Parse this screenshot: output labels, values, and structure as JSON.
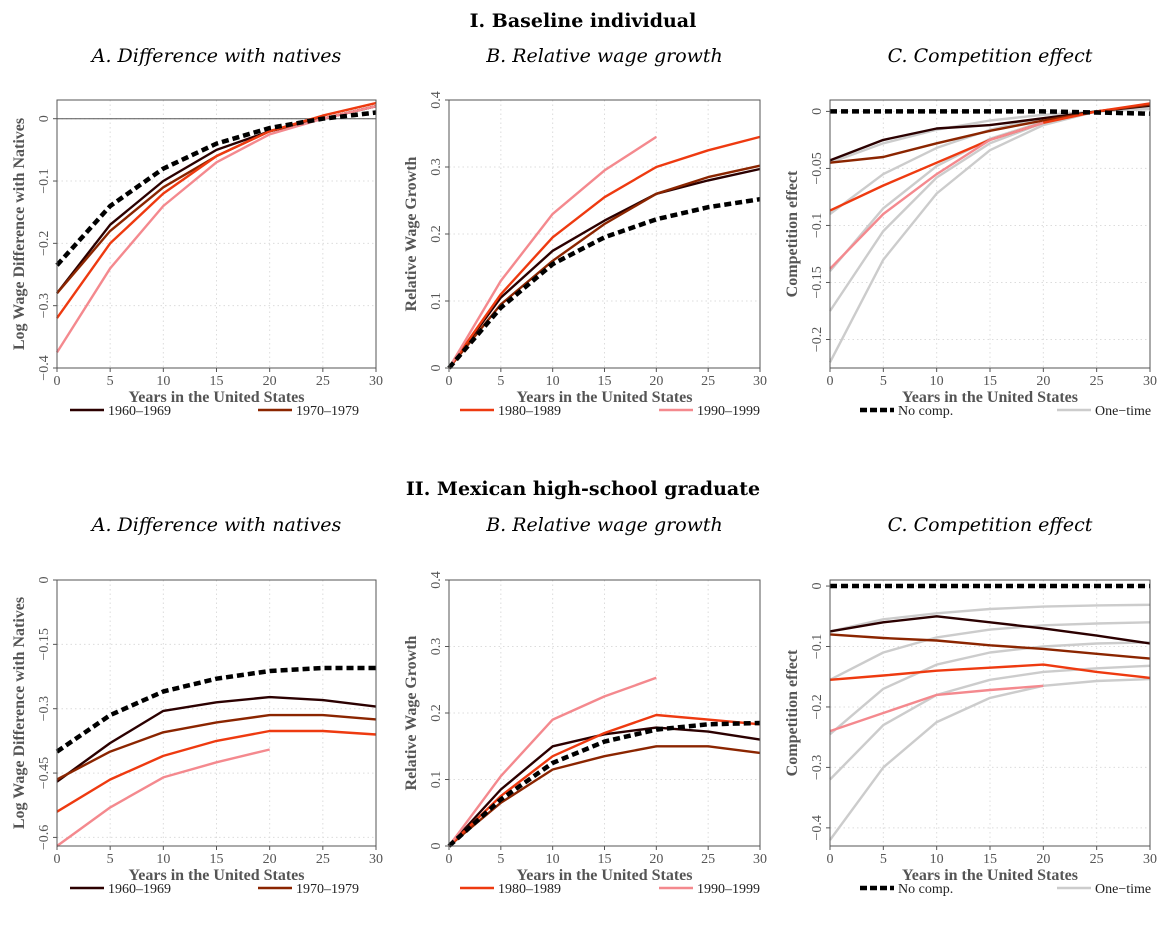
{
  "sections": [
    {
      "title": "I. Baseline individual",
      "panels": [
        {
          "title": "A. Difference with natives",
          "xlabel": "Years in the United States",
          "ylabel": "Log Wage Difference with Natives"
        },
        {
          "title": "B. Relative wage growth",
          "xlabel": "Years in the United States",
          "ylabel": "Relative Wage Growth"
        },
        {
          "title": "C. Competition effect",
          "xlabel": "Years in the United States",
          "ylabel": "Competition effect"
        }
      ],
      "legend": [
        "1960–1969",
        "1970–1979",
        "1980–1989",
        "1990–1999",
        "No comp.",
        "One−time"
      ]
    },
    {
      "title": "II. Mexican high-school graduate",
      "panels": [
        {
          "title": "A. Difference with natives",
          "xlabel": "Years in the United States",
          "ylabel": "Log Wage Difference with Natives"
        },
        {
          "title": "B. Relative wage growth",
          "xlabel": "Years in the United States",
          "ylabel": "Relative Wage Growth"
        },
        {
          "title": "C. Competition effect",
          "xlabel": "Years in the United States",
          "ylabel": "Competition effect"
        }
      ],
      "legend": [
        "1960–1969",
        "1970–1979",
        "1980–1989",
        "1990–1999",
        "No comp.",
        "One−time"
      ]
    }
  ],
  "colors": {
    "c1960": "#2b0000",
    "c1970": "#8b2500",
    "c1980": "#ee3a10",
    "c1990": "#f4898e",
    "nocomp": "#000000",
    "onetime": "#cccccc"
  },
  "chart_data": [
    {
      "type": "line",
      "xlim": [
        0,
        30
      ],
      "ylim": [
        -0.4,
        0.03
      ],
      "xticks": [
        0,
        5,
        10,
        15,
        20,
        25,
        30
      ],
      "yticks": [
        0,
        -0.1,
        -0.2,
        -0.3,
        -0.4
      ],
      "yticklabels": [
        "0",
        "−0.1",
        "−0.2",
        "−0.3",
        "−0.4"
      ],
      "zero_line": true,
      "series": [
        {
          "key": "c1960",
          "x": [
            0,
            5,
            10,
            15,
            20,
            25,
            30
          ],
          "y": [
            -0.28,
            -0.17,
            -0.1,
            -0.05,
            -0.02,
            0.0,
            0.02
          ]
        },
        {
          "key": "c1970",
          "x": [
            0,
            5,
            10,
            15,
            20,
            25,
            30
          ],
          "y": [
            -0.28,
            -0.18,
            -0.11,
            -0.06,
            -0.02,
            0.0,
            0.02
          ]
        },
        {
          "key": "c1980",
          "x": [
            0,
            5,
            10,
            15,
            20,
            25,
            30
          ],
          "y": [
            -0.32,
            -0.2,
            -0.12,
            -0.06,
            -0.02,
            0.005,
            0.025
          ]
        },
        {
          "key": "c1990",
          "x": [
            0,
            5,
            10,
            15,
            20,
            25,
            30
          ],
          "y": [
            -0.375,
            -0.24,
            -0.14,
            -0.07,
            -0.025,
            0.0,
            0.02
          ]
        },
        {
          "key": "nocomp",
          "x": [
            0,
            5,
            10,
            15,
            20,
            25,
            30
          ],
          "y": [
            -0.235,
            -0.14,
            -0.08,
            -0.04,
            -0.015,
            0.0,
            0.01
          ]
        }
      ]
    },
    {
      "type": "line",
      "xlim": [
        0,
        30
      ],
      "ylim": [
        0,
        0.4
      ],
      "xticks": [
        0,
        5,
        10,
        15,
        20,
        25,
        30
      ],
      "yticks": [
        0,
        0.1,
        0.2,
        0.3,
        0.4
      ],
      "yticklabels": [
        "0",
        "0.1",
        "0.2",
        "0.3",
        "0.4"
      ],
      "zero_line": false,
      "series": [
        {
          "key": "c1960",
          "x": [
            0,
            5,
            10,
            15,
            20,
            25,
            30
          ],
          "y": [
            0,
            0.105,
            0.175,
            0.22,
            0.26,
            0.28,
            0.297
          ]
        },
        {
          "key": "c1970",
          "x": [
            0,
            5,
            10,
            15,
            20,
            25,
            30
          ],
          "y": [
            0,
            0.095,
            0.16,
            0.215,
            0.26,
            0.285,
            0.302
          ]
        },
        {
          "key": "c1980",
          "x": [
            0,
            5,
            10,
            15,
            20,
            25,
            30
          ],
          "y": [
            0,
            0.11,
            0.195,
            0.255,
            0.3,
            0.325,
            0.345
          ]
        },
        {
          "key": "c1990",
          "x": [
            0,
            5,
            10,
            15,
            20
          ],
          "y": [
            0,
            0.13,
            0.23,
            0.295,
            0.345
          ]
        },
        {
          "key": "nocomp",
          "x": [
            0,
            5,
            10,
            15,
            20,
            25,
            30
          ],
          "y": [
            0,
            0.09,
            0.155,
            0.195,
            0.222,
            0.24,
            0.252
          ]
        }
      ]
    },
    {
      "type": "line",
      "xlim": [
        0,
        30
      ],
      "ylim": [
        -0.225,
        0.01
      ],
      "xticks": [
        0,
        5,
        10,
        15,
        20,
        25,
        30
      ],
      "yticks": [
        0,
        -0.05,
        -0.1,
        -0.15,
        -0.2
      ],
      "yticklabels": [
        "0",
        "−0.05",
        "−0.1",
        "−0.15",
        "−0.2"
      ],
      "zero_line": false,
      "series": [
        {
          "key": "onetime",
          "x": [
            0,
            5,
            10,
            15,
            20,
            25,
            30
          ],
          "y": [
            -0.045,
            -0.028,
            -0.016,
            -0.008,
            -0.003,
            0.0,
            0.002
          ]
        },
        {
          "key": "onetime",
          "x": [
            0,
            5,
            10,
            15,
            20,
            25,
            30
          ],
          "y": [
            -0.09,
            -0.055,
            -0.032,
            -0.016,
            -0.006,
            0.0,
            0.003
          ]
        },
        {
          "key": "onetime",
          "x": [
            0,
            5,
            10,
            15,
            20,
            25,
            30
          ],
          "y": [
            -0.14,
            -0.085,
            -0.048,
            -0.024,
            -0.009,
            0.0,
            0.004
          ]
        },
        {
          "key": "onetime",
          "x": [
            0,
            5,
            10,
            15,
            20,
            25,
            30
          ],
          "y": [
            -0.175,
            -0.105,
            -0.058,
            -0.028,
            -0.01,
            0.0,
            0.005
          ]
        },
        {
          "key": "onetime",
          "x": [
            0,
            5,
            10,
            15,
            20,
            25,
            30
          ],
          "y": [
            -0.22,
            -0.13,
            -0.072,
            -0.034,
            -0.012,
            0.0,
            0.006
          ]
        },
        {
          "key": "c1960",
          "x": [
            0,
            5,
            10,
            15,
            20,
            25,
            30
          ],
          "y": [
            -0.043,
            -0.025,
            -0.015,
            -0.012,
            -0.006,
            0.0,
            0.005
          ]
        },
        {
          "key": "c1970",
          "x": [
            0,
            5,
            10,
            15,
            20,
            25,
            30
          ],
          "y": [
            -0.045,
            -0.04,
            -0.028,
            -0.017,
            -0.008,
            0.0,
            0.006
          ]
        },
        {
          "key": "c1980",
          "x": [
            0,
            5,
            10,
            15,
            20,
            25,
            30
          ],
          "y": [
            -0.087,
            -0.065,
            -0.045,
            -0.025,
            -0.01,
            0.0,
            0.007
          ]
        },
        {
          "key": "c1990",
          "x": [
            0,
            5,
            10,
            15,
            20
          ],
          "y": [
            -0.138,
            -0.09,
            -0.055,
            -0.025,
            -0.01
          ]
        },
        {
          "key": "nocomp",
          "x": [
            0,
            5,
            10,
            15,
            20,
            25,
            30
          ],
          "y": [
            0,
            0,
            0,
            0,
            0,
            -0.001,
            -0.002
          ]
        }
      ]
    },
    {
      "type": "line",
      "xlim": [
        0,
        30
      ],
      "ylim": [
        -0.62,
        0
      ],
      "xticks": [
        0,
        5,
        10,
        15,
        20,
        25,
        30
      ],
      "yticks": [
        0,
        -0.15,
        -0.3,
        -0.45,
        -0.6
      ],
      "yticklabels": [
        "0",
        "−0.15",
        "−0.3",
        "−0.45",
        "−0.6"
      ],
      "zero_line": true,
      "series": [
        {
          "key": "c1960",
          "x": [
            0,
            5,
            10,
            15,
            20,
            25,
            30
          ],
          "y": [
            -0.47,
            -0.38,
            -0.305,
            -0.285,
            -0.273,
            -0.28,
            -0.295
          ]
        },
        {
          "key": "c1970",
          "x": [
            0,
            5,
            10,
            15,
            20,
            25,
            30
          ],
          "y": [
            -0.465,
            -0.4,
            -0.355,
            -0.332,
            -0.315,
            -0.315,
            -0.325
          ]
        },
        {
          "key": "c1980",
          "x": [
            0,
            5,
            10,
            15,
            20,
            25,
            30
          ],
          "y": [
            -0.54,
            -0.465,
            -0.41,
            -0.375,
            -0.352,
            -0.352,
            -0.36
          ]
        },
        {
          "key": "c1990",
          "x": [
            0,
            5,
            10,
            15,
            20
          ],
          "y": [
            -0.62,
            -0.53,
            -0.46,
            -0.425,
            -0.395
          ]
        },
        {
          "key": "nocomp",
          "x": [
            0,
            5,
            10,
            15,
            20,
            25,
            30
          ],
          "y": [
            -0.4,
            -0.315,
            -0.26,
            -0.23,
            -0.212,
            -0.205,
            -0.205
          ]
        }
      ]
    },
    {
      "type": "line",
      "xlim": [
        0,
        30
      ],
      "ylim": [
        0,
        0.4
      ],
      "xticks": [
        0,
        5,
        10,
        15,
        20,
        25,
        30
      ],
      "yticks": [
        0,
        0.1,
        0.2,
        0.3,
        0.4
      ],
      "yticklabels": [
        "0",
        "0.1",
        "0.2",
        "0.3",
        "0.4"
      ],
      "zero_line": false,
      "series": [
        {
          "key": "c1960",
          "x": [
            0,
            5,
            10,
            15,
            20,
            25,
            30
          ],
          "y": [
            0,
            0.085,
            0.15,
            0.168,
            0.178,
            0.172,
            0.16
          ]
        },
        {
          "key": "c1970",
          "x": [
            0,
            5,
            10,
            15,
            20,
            25,
            30
          ],
          "y": [
            0,
            0.065,
            0.115,
            0.135,
            0.15,
            0.15,
            0.14
          ]
        },
        {
          "key": "c1980",
          "x": [
            0,
            5,
            10,
            15,
            20,
            25,
            30
          ],
          "y": [
            0,
            0.075,
            0.135,
            0.17,
            0.197,
            0.19,
            0.183
          ]
        },
        {
          "key": "c1990",
          "x": [
            0,
            5,
            10,
            15,
            20
          ],
          "y": [
            0,
            0.105,
            0.19,
            0.225,
            0.253
          ]
        },
        {
          "key": "nocomp",
          "x": [
            0,
            5,
            10,
            15,
            20,
            25,
            30
          ],
          "y": [
            0,
            0.07,
            0.125,
            0.157,
            0.175,
            0.183,
            0.185
          ]
        }
      ]
    },
    {
      "type": "line",
      "xlim": [
        0,
        30
      ],
      "ylim": [
        -0.43,
        0.01
      ],
      "xticks": [
        0,
        5,
        10,
        15,
        20,
        25,
        30
      ],
      "yticks": [
        0,
        -0.1,
        -0.2,
        -0.3,
        -0.4
      ],
      "yticklabels": [
        "0",
        "−0.1",
        "−0.2",
        "−0.3",
        "−0.4"
      ],
      "zero_line": false,
      "series": [
        {
          "key": "onetime",
          "x": [
            0,
            5,
            10,
            15,
            20,
            25,
            30
          ],
          "y": [
            -0.075,
            -0.055,
            -0.045,
            -0.038,
            -0.034,
            -0.032,
            -0.031
          ]
        },
        {
          "key": "onetime",
          "x": [
            0,
            5,
            10,
            15,
            20,
            25,
            30
          ],
          "y": [
            -0.155,
            -0.11,
            -0.085,
            -0.072,
            -0.065,
            -0.062,
            -0.06
          ]
        },
        {
          "key": "onetime",
          "x": [
            0,
            5,
            10,
            15,
            20,
            25,
            30
          ],
          "y": [
            -0.245,
            -0.17,
            -0.13,
            -0.11,
            -0.1,
            -0.095,
            -0.093
          ]
        },
        {
          "key": "onetime",
          "x": [
            0,
            5,
            10,
            15,
            20,
            25,
            30
          ],
          "y": [
            -0.32,
            -0.23,
            -0.18,
            -0.155,
            -0.142,
            -0.136,
            -0.132
          ]
        },
        {
          "key": "onetime",
          "x": [
            0,
            5,
            10,
            15,
            20,
            25,
            30
          ],
          "y": [
            -0.42,
            -0.3,
            -0.225,
            -0.185,
            -0.165,
            -0.157,
            -0.154
          ]
        },
        {
          "key": "c1960",
          "x": [
            0,
            5,
            10,
            15,
            20,
            25,
            30
          ],
          "y": [
            -0.075,
            -0.06,
            -0.05,
            -0.06,
            -0.07,
            -0.082,
            -0.095
          ]
        },
        {
          "key": "c1970",
          "x": [
            0,
            5,
            10,
            15,
            20,
            25,
            30
          ],
          "y": [
            -0.08,
            -0.086,
            -0.09,
            -0.098,
            -0.104,
            -0.112,
            -0.12
          ]
        },
        {
          "key": "c1980",
          "x": [
            0,
            5,
            10,
            15,
            20,
            25,
            30
          ],
          "y": [
            -0.155,
            -0.148,
            -0.14,
            -0.135,
            -0.13,
            -0.142,
            -0.152
          ]
        },
        {
          "key": "c1990",
          "x": [
            0,
            5,
            10,
            15,
            20
          ],
          "y": [
            -0.24,
            -0.21,
            -0.18,
            -0.172,
            -0.165
          ]
        },
        {
          "key": "nocomp",
          "x": [
            0,
            5,
            10,
            15,
            20,
            25,
            30
          ],
          "y": [
            0,
            0,
            0,
            0,
            0,
            0,
            0
          ]
        }
      ]
    }
  ]
}
